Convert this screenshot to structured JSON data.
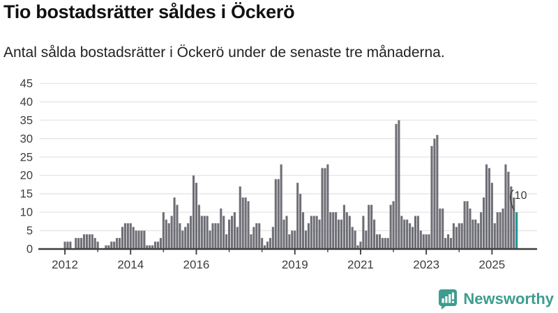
{
  "header": {
    "title": "Tio bostadsrätter såldes i Öckerö",
    "subtitle": "Antal sålda bostadsrätter i Öckerö under de senaste tre månaderna."
  },
  "chart_data": {
    "type": "bar",
    "title": "Tio bostadsrätter såldes i Öckerö",
    "subtitle": "Antal sålda bostadsrätter i Öckerö under de senaste tre månaderna.",
    "frequency": "monthly",
    "start_tick_label": "2012",
    "values": [
      2,
      2,
      2,
      0,
      3,
      3,
      3,
      4,
      4,
      4,
      4,
      3,
      2,
      0,
      0,
      1,
      1,
      2,
      2,
      3,
      3,
      6,
      7,
      7,
      7,
      6,
      5,
      5,
      5,
      5,
      1,
      1,
      1,
      2,
      2,
      3,
      10,
      8,
      7,
      9,
      14,
      12,
      7,
      5,
      6,
      7,
      9,
      20,
      18,
      12,
      9,
      9,
      9,
      5,
      7,
      7,
      7,
      11,
      9,
      4,
      8,
      9,
      10,
      6,
      17,
      14,
      14,
      13,
      4,
      6,
      7,
      7,
      3,
      1,
      2,
      3,
      6,
      19,
      19,
      23,
      8,
      9,
      4,
      5,
      5,
      18,
      15,
      10,
      5,
      7,
      9,
      9,
      9,
      8,
      22,
      22,
      23,
      10,
      10,
      10,
      8,
      8,
      12,
      10,
      9,
      6,
      5,
      1,
      2,
      9,
      5,
      12,
      12,
      8,
      4,
      4,
      3,
      3,
      3,
      12,
      13,
      34,
      35,
      9,
      8,
      8,
      7,
      6,
      9,
      9,
      5,
      4,
      4,
      4,
      28,
      30,
      31,
      11,
      11,
      3,
      4,
      3,
      7,
      6,
      7,
      7,
      13,
      13,
      11,
      8,
      8,
      7,
      10,
      14,
      23,
      22,
      18,
      7,
      10,
      10,
      11,
      23,
      21,
      17,
      14,
      10
    ],
    "highlight_last_bar": true,
    "annotation_label": "10",
    "y_ticks": [
      0,
      5,
      10,
      15,
      20,
      25,
      30,
      35,
      40,
      45
    ],
    "ylim": [
      0,
      45
    ],
    "grid": true,
    "x_tick_labels": [
      {
        "label": "2012",
        "month_index": 0
      },
      {
        "label": "2014",
        "month_index": 24
      },
      {
        "label": "2016",
        "month_index": 48
      },
      {
        "label": "2019",
        "month_index": 84
      },
      {
        "label": "2021",
        "month_index": 108
      },
      {
        "label": "2023",
        "month_index": 132
      },
      {
        "label": "2025",
        "month_index": 156
      }
    ],
    "minor_tick_years": 14,
    "colors": {
      "bar": "#6e6e76",
      "highlight": "#199698",
      "grid": "#e4e4e4",
      "axis": "#3c3c3c",
      "tick_label": "#3c3c3c",
      "annotation": "#3c3c3c"
    }
  },
  "branding": {
    "name": "Newsworthy",
    "color": "#3d9c90",
    "icon": "bar-chart-speech-bubble"
  }
}
